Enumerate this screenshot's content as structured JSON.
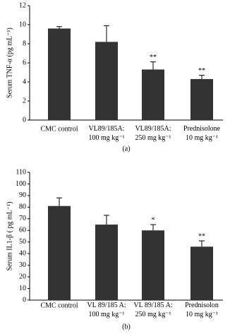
{
  "chart_data": [
    {
      "type": "bar",
      "y_label": "Serum TNF-α (pg mL⁻¹)",
      "caption": "(a)",
      "categories": [
        "CMC control",
        "VL89/185A:\n100 mg kg⁻¹",
        "VL89/185A:\n250 mg kg⁻¹",
        "Prednisolone\n10 mg kg⁻¹"
      ],
      "values": [
        9.6,
        8.2,
        5.3,
        4.3
      ],
      "errors": [
        0.2,
        1.7,
        0.8,
        0.4
      ],
      "annotations": [
        null,
        null,
        "**",
        "**"
      ],
      "color": "#333333",
      "ylim": [
        0,
        12
      ],
      "yticks": [
        0,
        2,
        4,
        6,
        8,
        10,
        12
      ]
    },
    {
      "type": "bar",
      "y_label": "Serum IL1-β ( pg mL⁻¹)",
      "caption": "(b)",
      "categories": [
        "CMC control",
        "VL 89/185 A:\n100 mg kg⁻¹",
        "VL 89/185 A:\n250 mg kg⁻¹",
        "Prednisolon\n10 mg kg⁻¹"
      ],
      "values": [
        81,
        65,
        60,
        46
      ],
      "errors": [
        7,
        8,
        5,
        5
      ],
      "annotations": [
        null,
        null,
        "*",
        "**"
      ],
      "color": "#333333",
      "ylim": [
        0,
        110
      ],
      "yticks": [
        0,
        10,
        20,
        30,
        40,
        50,
        60,
        70,
        80,
        90,
        100,
        110
      ]
    }
  ]
}
